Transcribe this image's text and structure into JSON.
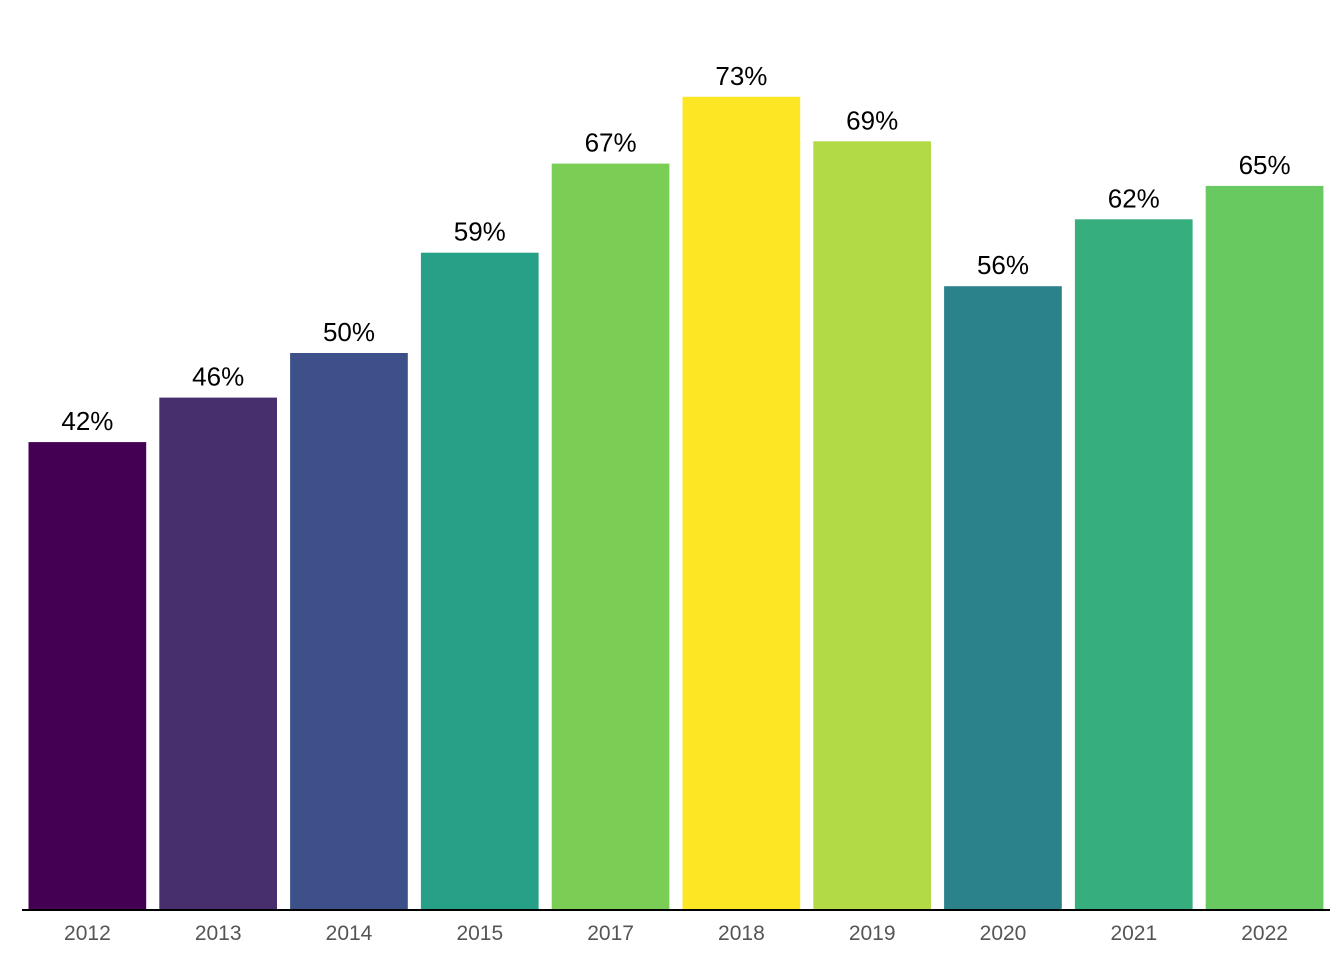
{
  "chart_data": {
    "type": "bar",
    "categories": [
      "2012",
      "2013",
      "2014",
      "2015",
      "2017",
      "2018",
      "2019",
      "2020",
      "2021",
      "2022"
    ],
    "values": [
      42,
      46,
      50,
      59,
      67,
      73,
      69,
      56,
      62,
      65
    ],
    "data_labels": [
      "42%",
      "46%",
      "50%",
      "59%",
      "67%",
      "73%",
      "69%",
      "56%",
      "62%",
      "65%"
    ],
    "colors": [
      "#440154",
      "#472f6e",
      "#3e5089",
      "#26a086",
      "#7ace55",
      "#fde725",
      "#b1da45",
      "#2c828b",
      "#37ae7d",
      "#68c961"
    ],
    "title": "",
    "xlabel": "",
    "ylabel": "",
    "ylim": [
      0,
      75
    ],
    "grid": false,
    "legend": "none"
  }
}
